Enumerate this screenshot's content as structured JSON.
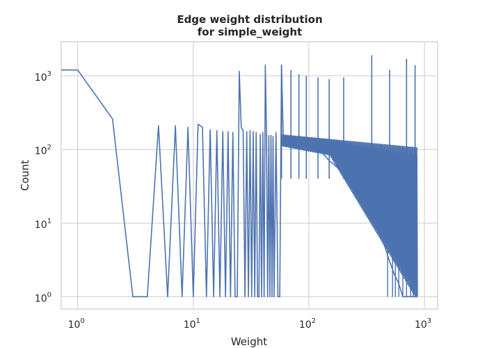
{
  "chart_data": {
    "type": "line",
    "title_line1": "Edge weight distribution",
    "title_line2": "for simple_weight",
    "xlabel": "Weight",
    "ylabel": "Count",
    "xscale": "log",
    "yscale": "log",
    "xlim": [
      0.72,
      1300
    ],
    "ylim": [
      0.68,
      2900
    ],
    "grid": true,
    "x_ticks": [
      {
        "base": "10",
        "exp": "0",
        "value": 1
      },
      {
        "base": "10",
        "exp": "1",
        "value": 10
      },
      {
        "base": "10",
        "exp": "2",
        "value": 100
      },
      {
        "base": "10",
        "exp": "3",
        "value": 1000
      }
    ],
    "y_ticks": [
      {
        "base": "10",
        "exp": "0",
        "value": 1
      },
      {
        "base": "10",
        "exp": "1",
        "value": 10
      },
      {
        "base": "10",
        "exp": "2",
        "value": 100
      },
      {
        "base": "10",
        "exp": "3",
        "value": 1000
      }
    ],
    "series": [
      {
        "color": "#4c72b0",
        "x": [
          0.72,
          1,
          2,
          3,
          4,
          5,
          6,
          7,
          8,
          9,
          10,
          11,
          12,
          13,
          14,
          15,
          16,
          17,
          18,
          19,
          20,
          21,
          22,
          23,
          24,
          25,
          26,
          27,
          28,
          29,
          30,
          31,
          32,
          33,
          34,
          35,
          36,
          37,
          38,
          39,
          40,
          41,
          42,
          43,
          44,
          45,
          46,
          47,
          48,
          49,
          50,
          52,
          54,
          56,
          58,
          60,
          65,
          70,
          75,
          80,
          90,
          100,
          110,
          120,
          130,
          140,
          150,
          160,
          180,
          200,
          220,
          250,
          280,
          300,
          350,
          400,
          450,
          500,
          550,
          600,
          650,
          700,
          750,
          800,
          850,
          870
        ],
        "y": [
          1200,
          1200,
          260,
          1,
          1,
          210,
          1,
          210,
          1,
          200,
          1,
          220,
          200,
          1,
          185,
          1,
          180,
          1,
          175,
          1,
          175,
          1,
          170,
          1,
          1,
          1150,
          200,
          180,
          1,
          175,
          1,
          180,
          1,
          175,
          1,
          170,
          1,
          1,
          160,
          1,
          170,
          1,
          1400,
          160,
          1,
          155,
          1,
          155,
          1,
          150,
          1,
          170,
          1,
          1,
          1400,
          155,
          145,
          140,
          135,
          130,
          120,
          115,
          100,
          95,
          90,
          80,
          70,
          65,
          55,
          45,
          40,
          32,
          25,
          20,
          12,
          8,
          5,
          3,
          2,
          1.5,
          1,
          1,
          1,
          1,
          1,
          1
        ]
      }
    ]
  }
}
